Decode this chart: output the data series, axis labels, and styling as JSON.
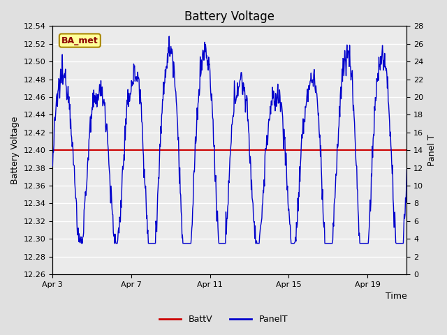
{
  "title": "Battery Voltage",
  "xlabel": "Time",
  "ylabel_left": "Battery Voltage",
  "ylabel_right": "Panel T",
  "battv_value": 12.4,
  "ylim_left": [
    12.26,
    12.54
  ],
  "ylim_right": [
    0,
    28
  ],
  "yticks_left": [
    12.26,
    12.28,
    12.3,
    12.32,
    12.34,
    12.36,
    12.38,
    12.4,
    12.42,
    12.44,
    12.46,
    12.48,
    12.5,
    12.52,
    12.54
  ],
  "yticks_right": [
    0,
    2,
    4,
    6,
    8,
    10,
    12,
    14,
    16,
    18,
    20,
    22,
    24,
    26,
    28
  ],
  "xtick_positions": [
    0,
    4,
    8,
    12,
    16
  ],
  "xtick_labels": [
    "Apr 3",
    "Apr 7",
    "Apr 11",
    "Apr 15",
    "Apr 19"
  ],
  "xlim": [
    0,
    18
  ],
  "batt_color": "#cc0000",
  "panel_color": "#0000cc",
  "bg_color": "#e0e0e0",
  "plot_bg": "#ebebeb",
  "annotation_text": "BA_met",
  "annotation_bg": "#ffff99",
  "annotation_border": "#aa8800",
  "annotation_text_color": "#8b0000",
  "legend_fontsize": 9,
  "title_fontsize": 12,
  "axis_fontsize": 9,
  "tick_fontsize": 8
}
